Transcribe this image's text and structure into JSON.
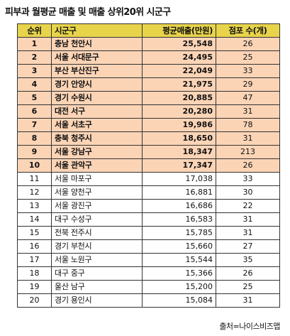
{
  "title": "피부과 월평균 매출 및 매출 상위20위 시군구",
  "table": {
    "headers": [
      "순위",
      "시군구",
      "평균매출(만원)",
      "점포 수(개)"
    ],
    "rows": [
      {
        "rank": "1",
        "region": "충남 천안시",
        "sales": "25,548",
        "stores": "26",
        "highlight": true
      },
      {
        "rank": "2",
        "region": "서울 서대문구",
        "sales": "24,495",
        "stores": "25",
        "highlight": true
      },
      {
        "rank": "3",
        "region": "부산 부산진구",
        "sales": "22,049",
        "stores": "33",
        "highlight": true
      },
      {
        "rank": "4",
        "region": "경기 안양시",
        "sales": "21,975",
        "stores": "29",
        "highlight": true
      },
      {
        "rank": "5",
        "region": "경기 수원시",
        "sales": "20,885",
        "stores": "47",
        "highlight": true
      },
      {
        "rank": "6",
        "region": "대전 서구",
        "sales": "20,280",
        "stores": "31",
        "highlight": true
      },
      {
        "rank": "7",
        "region": "서울 서초구",
        "sales": "19,986",
        "stores": "78",
        "highlight": true
      },
      {
        "rank": "8",
        "region": "충북 청주시",
        "sales": "18,650",
        "stores": "31",
        "highlight": true
      },
      {
        "rank": "9",
        "region": "서울 강남구",
        "sales": "18,347",
        "stores": "213",
        "highlight": true
      },
      {
        "rank": "10",
        "region": "서울 관악구",
        "sales": "17,347",
        "stores": "26",
        "highlight": true
      },
      {
        "rank": "11",
        "region": "서울 마포구",
        "sales": "17,038",
        "stores": "33",
        "highlight": false
      },
      {
        "rank": "12",
        "region": "서울 양천구",
        "sales": "16,881",
        "stores": "30",
        "highlight": false
      },
      {
        "rank": "13",
        "region": "서울 광진구",
        "sales": "16,686",
        "stores": "22",
        "highlight": false
      },
      {
        "rank": "14",
        "region": "대구 수성구",
        "sales": "16,583",
        "stores": "31",
        "highlight": false
      },
      {
        "rank": "15",
        "region": "전북 전주시",
        "sales": "15,785",
        "stores": "31",
        "highlight": false
      },
      {
        "rank": "16",
        "region": "경기 부천시",
        "sales": "15,660",
        "stores": "27",
        "highlight": false
      },
      {
        "rank": "17",
        "region": "서울 노원구",
        "sales": "15,544",
        "stores": "35",
        "highlight": false
      },
      {
        "rank": "18",
        "region": "대구 중구",
        "sales": "15,366",
        "stores": "26",
        "highlight": false
      },
      {
        "rank": "19",
        "region": "울산 남구",
        "sales": "15,200",
        "stores": "25",
        "highlight": false
      },
      {
        "rank": "20",
        "region": "경기 용인시",
        "sales": "15,084",
        "stores": "31",
        "highlight": false
      }
    ]
  },
  "source": "출처=나이스비즈맵",
  "colors": {
    "header_bg": "#e8d44b",
    "top10_bg": "#fbd4b6",
    "border": "#333333"
  }
}
